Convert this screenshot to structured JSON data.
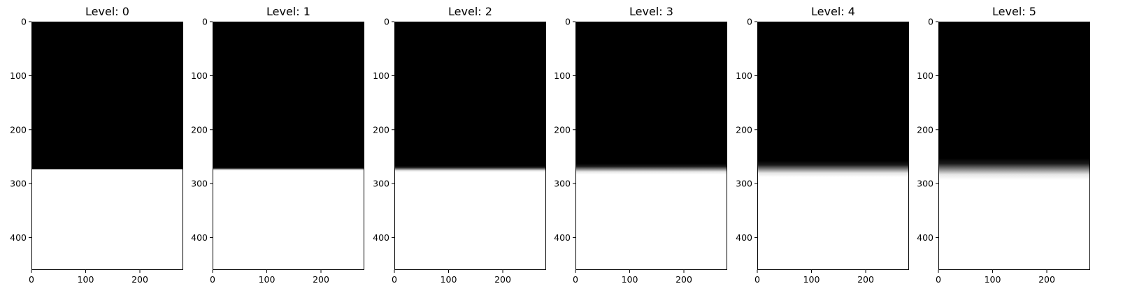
{
  "figure": {
    "background": "#ffffff"
  },
  "chart_data": [
    {
      "type": "heatmap",
      "title": "Level: 0",
      "colormap": "gray",
      "image_size": [
        280,
        460
      ],
      "xlim": [
        0,
        280
      ],
      "ylim": [
        460,
        0
      ],
      "x_ticks": [
        0,
        100,
        200
      ],
      "y_ticks": [
        0,
        100,
        200,
        300,
        400
      ],
      "edge_row": 273,
      "blur_halfwidth": 0,
      "top_value": "black",
      "bottom_value": "white"
    },
    {
      "type": "heatmap",
      "title": "Level: 1",
      "colormap": "gray",
      "image_size": [
        280,
        460
      ],
      "xlim": [
        0,
        280
      ],
      "ylim": [
        460,
        0
      ],
      "x_ticks": [
        0,
        100,
        200
      ],
      "y_ticks": [
        0,
        100,
        200,
        300,
        400
      ],
      "edge_row": 273,
      "blur_halfwidth": 3,
      "top_value": "black",
      "bottom_value": "white"
    },
    {
      "type": "heatmap",
      "title": "Level: 2",
      "colormap": "gray",
      "image_size": [
        280,
        460
      ],
      "xlim": [
        0,
        280
      ],
      "ylim": [
        460,
        0
      ],
      "x_ticks": [
        0,
        100,
        200
      ],
      "y_ticks": [
        0,
        100,
        200,
        300,
        400
      ],
      "edge_row": 273,
      "blur_halfwidth": 6,
      "top_value": "black",
      "bottom_value": "white"
    },
    {
      "type": "heatmap",
      "title": "Level: 3",
      "colormap": "gray",
      "image_size": [
        280,
        460
      ],
      "xlim": [
        0,
        280
      ],
      "ylim": [
        460,
        0
      ],
      "x_ticks": [
        0,
        100,
        200
      ],
      "y_ticks": [
        0,
        100,
        200,
        300,
        400
      ],
      "edge_row": 273,
      "blur_halfwidth": 10,
      "top_value": "black",
      "bottom_value": "white"
    },
    {
      "type": "heatmap",
      "title": "Level: 4",
      "colormap": "gray",
      "image_size": [
        280,
        460
      ],
      "xlim": [
        0,
        280
      ],
      "ylim": [
        460,
        0
      ],
      "x_ticks": [
        0,
        100,
        200
      ],
      "y_ticks": [
        0,
        100,
        200,
        300,
        400
      ],
      "edge_row": 273,
      "blur_halfwidth": 15,
      "top_value": "black",
      "bottom_value": "white"
    },
    {
      "type": "heatmap",
      "title": "Level: 5",
      "colormap": "gray",
      "image_size": [
        280,
        460
      ],
      "xlim": [
        0,
        280
      ],
      "ylim": [
        460,
        0
      ],
      "x_ticks": [
        0,
        100,
        200
      ],
      "y_ticks": [
        0,
        100,
        200,
        300,
        400
      ],
      "edge_row": 273,
      "blur_halfwidth": 20,
      "top_value": "black",
      "bottom_value": "white"
    }
  ]
}
